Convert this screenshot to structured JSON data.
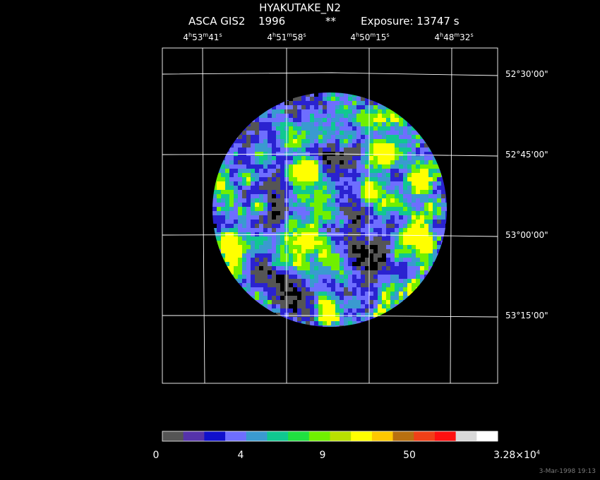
{
  "header": {
    "title": "HYAKUTAKE_N2",
    "mission": "ASCA GIS2",
    "year": "1996",
    "stars": "**",
    "exposure": "Exposure: 13747 s"
  },
  "ra_labels": [
    {
      "h": "4",
      "m": "53",
      "s": "41"
    },
    {
      "h": "4",
      "m": "51",
      "s": "58"
    },
    {
      "h": "4",
      "m": "50",
      "s": "15"
    },
    {
      "h": "4",
      "m": "48",
      "s": "32"
    }
  ],
  "dec_labels": [
    "52°30'00\"",
    "52°45'00\"",
    "53°00'00\"",
    "53°15'00\""
  ],
  "colorbar": {
    "colors": [
      "#555555",
      "#5533aa",
      "#1010cc",
      "#6e6eff",
      "#3a9ad0",
      "#10c890",
      "#20e040",
      "#70f000",
      "#b8e000",
      "#ffff00",
      "#ffc800",
      "#b87010",
      "#f04018",
      "#ff1010",
      "#d8d8d8",
      "#ffffff"
    ],
    "tick_labels": [
      "0",
      "4",
      "9",
      "50"
    ],
    "max_label_mantissa": "3.28×10",
    "max_label_exp": "4"
  },
  "timestamp": "3-Mar-1998 19:13"
}
